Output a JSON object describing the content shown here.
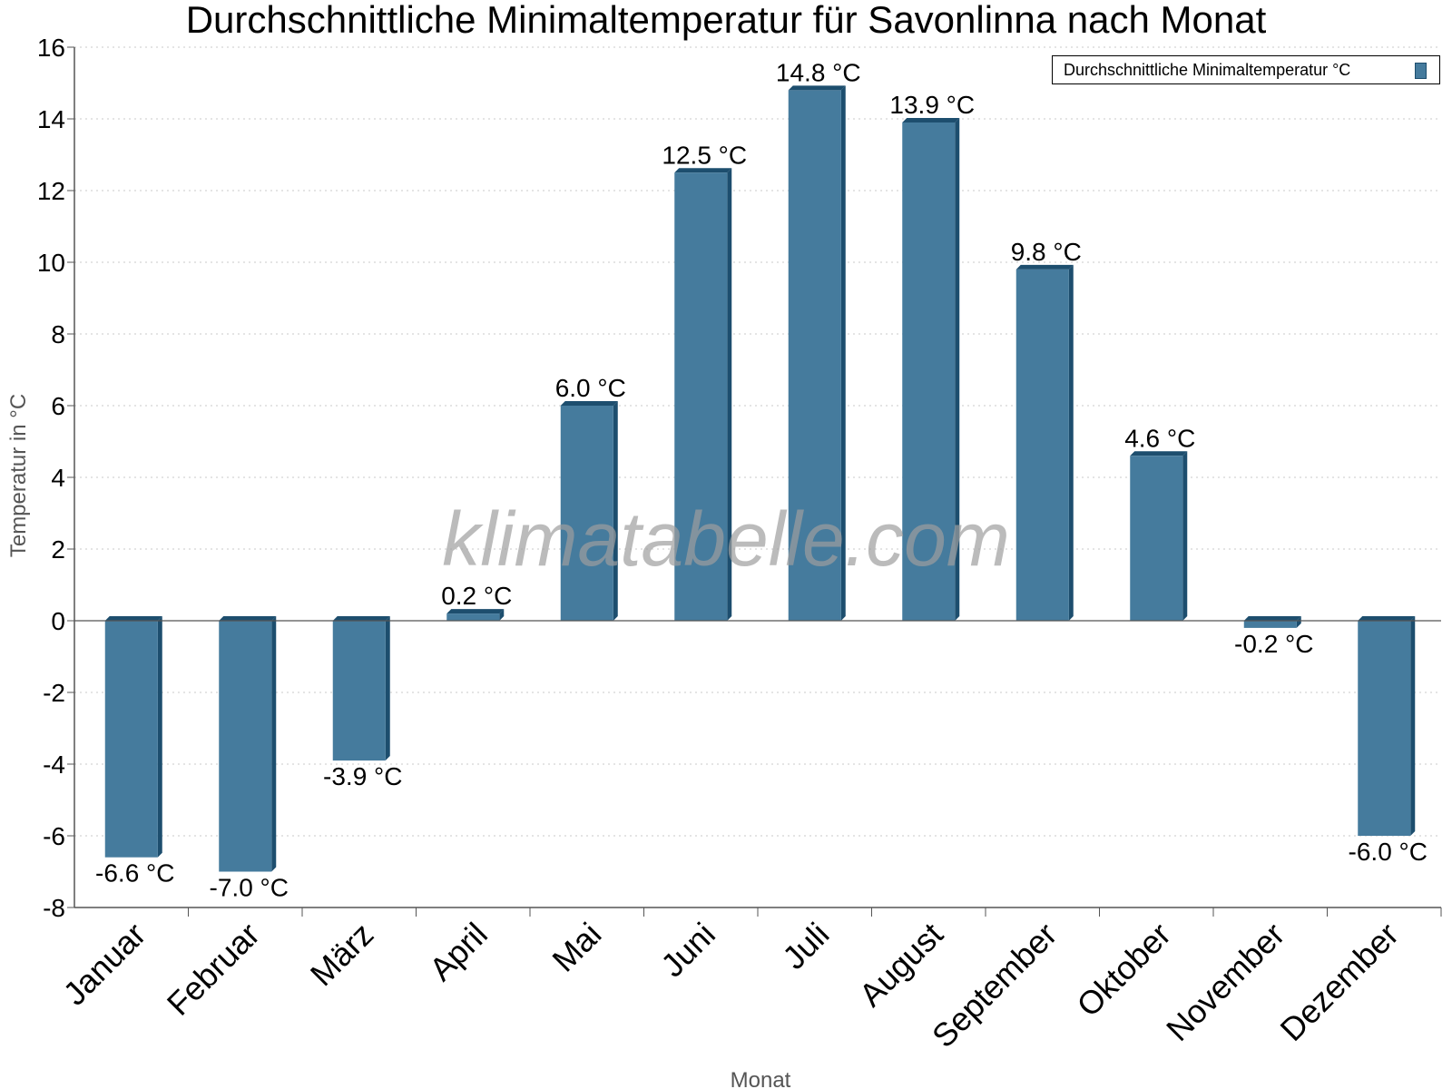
{
  "chart_data": {
    "type": "bar",
    "title": "Durchschnittliche Minimaltemperatur für Savonlinna nach Monat",
    "xlabel": "Monat",
    "ylabel": "Temperatur in °C",
    "ylim": [
      -8,
      16
    ],
    "yticks": [
      -8,
      -6,
      -4,
      -2,
      0,
      2,
      4,
      6,
      8,
      10,
      12,
      14,
      16
    ],
    "grid": true,
    "legend_position": "top-right",
    "categories": [
      "Januar",
      "Februar",
      "März",
      "April",
      "Mai",
      "Juni",
      "Juli",
      "August",
      "September",
      "Oktober",
      "November",
      "Dezember"
    ],
    "series": [
      {
        "name": "Durchschnittliche Minimaltemperatur °C",
        "values": [
          -6.6,
          -7.0,
          -3.9,
          0.2,
          6.0,
          12.5,
          14.8,
          13.9,
          9.8,
          4.6,
          -0.2,
          -6.0
        ],
        "labels": [
          "-6.6 °C",
          "-7.0 °C",
          "-3.9 °C",
          "0.2 °C",
          "6.0 °C",
          "12.5 °C",
          "14.8 °C",
          "13.9 °C",
          "9.8 °C",
          "4.6 °C",
          "-0.2 °C",
          "-6.0 °C"
        ],
        "color": "#457b9d",
        "edge_color": "#1d4e6e"
      }
    ],
    "watermark": "klimatabelle.com"
  }
}
